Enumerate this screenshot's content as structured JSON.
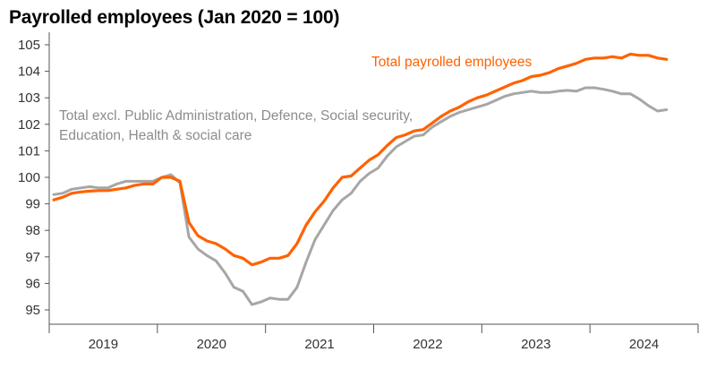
{
  "chart_data": {
    "type": "line",
    "title": "Payrolled employees (Jan 2020 = 100)",
    "xlabel": "",
    "ylabel": "",
    "ylim": [
      95,
      105
    ],
    "yticks": [
      95,
      96,
      97,
      98,
      99,
      100,
      101,
      102,
      103,
      104,
      105
    ],
    "x_range": [
      "2019-01",
      "2024-10"
    ],
    "x_categories": [
      "2019",
      "2020",
      "2021",
      "2022",
      "2023",
      "2024"
    ],
    "grid": false,
    "colors": {
      "total": "#FF6200",
      "excl": "#A6A6A6",
      "axis": "#555555"
    },
    "series": [
      {
        "name": "Total payrolled employees",
        "color": "#FF6200",
        "start": "2019-01",
        "values": [
          99.15,
          99.25,
          99.4,
          99.45,
          99.48,
          99.5,
          99.5,
          99.55,
          99.6,
          99.7,
          99.75,
          99.75,
          100.0,
          100.0,
          99.85,
          98.3,
          97.8,
          97.6,
          97.5,
          97.3,
          97.05,
          96.95,
          96.7,
          96.8,
          96.95,
          96.95,
          97.05,
          97.5,
          98.2,
          98.7,
          99.1,
          99.6,
          100.0,
          100.05,
          100.35,
          100.65,
          100.85,
          101.2,
          101.5,
          101.6,
          101.75,
          101.8,
          102.05,
          102.3,
          102.5,
          102.65,
          102.85,
          103.0,
          103.1,
          103.25,
          103.4,
          103.55,
          103.65,
          103.8,
          103.85,
          103.95,
          104.1,
          104.2,
          104.3,
          104.45,
          104.5,
          104.5,
          104.55,
          104.5,
          104.65,
          104.6,
          104.6,
          104.5,
          104.45
        ]
      },
      {
        "name": "Total excl. Public Administration, Defence, Social security, Education, Health & social care",
        "label_lines": [
          "Total excl. Public Administration, Defence, Social security,",
          "Education, Health & social care"
        ],
        "color": "#A6A6A6",
        "start": "2019-01",
        "values": [
          99.35,
          99.4,
          99.55,
          99.6,
          99.65,
          99.6,
          99.6,
          99.75,
          99.85,
          99.85,
          99.85,
          99.85,
          100.0,
          100.1,
          99.8,
          97.75,
          97.3,
          97.05,
          96.85,
          96.4,
          95.85,
          95.7,
          95.2,
          95.3,
          95.45,
          95.4,
          95.4,
          95.85,
          96.8,
          97.65,
          98.2,
          98.75,
          99.15,
          99.4,
          99.85,
          100.15,
          100.35,
          100.8,
          101.15,
          101.35,
          101.55,
          101.6,
          101.9,
          102.1,
          102.3,
          102.45,
          102.55,
          102.65,
          102.75,
          102.9,
          103.05,
          103.15,
          103.2,
          103.25,
          103.2,
          103.2,
          103.25,
          103.28,
          103.25,
          103.38,
          103.38,
          103.32,
          103.25,
          103.15,
          103.15,
          102.95,
          102.7,
          102.5,
          102.55
        ]
      }
    ]
  }
}
